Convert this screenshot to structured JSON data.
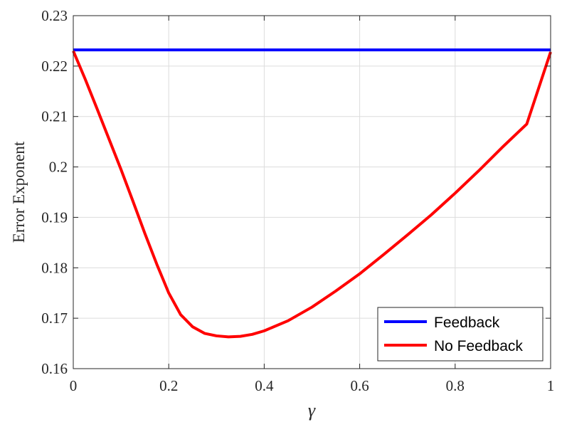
{
  "chart_data": {
    "type": "line",
    "title": "",
    "xlabel": "γ",
    "ylabel": "Error Exponent",
    "xlim": [
      0,
      1
    ],
    "ylim": [
      0.16,
      0.23
    ],
    "xticks": [
      0,
      0.2,
      0.4,
      0.6,
      0.8,
      1
    ],
    "xtick_labels": [
      "0",
      "0.2",
      "0.4",
      "0.6",
      "0.8",
      "1"
    ],
    "yticks": [
      0.16,
      0.17,
      0.18,
      0.19,
      0.2,
      0.21,
      0.22,
      0.23
    ],
    "ytick_labels": [
      "0.16",
      "0.17",
      "0.18",
      "0.19",
      "0.2",
      "0.21",
      "0.22",
      "0.23"
    ],
    "grid": true,
    "legend_position": "bottom-right",
    "series": [
      {
        "name": "Feedback",
        "color": "#0000ff",
        "x": [
          0,
          1
        ],
        "y": [
          0.2232,
          0.2232
        ]
      },
      {
        "name": "No Feedback",
        "color": "#ff0000",
        "x": [
          0,
          0.025,
          0.05,
          0.075,
          0.1,
          0.125,
          0.15,
          0.175,
          0.2,
          0.225,
          0.25,
          0.275,
          0.3,
          0.325,
          0.35,
          0.375,
          0.4,
          0.45,
          0.5,
          0.55,
          0.6,
          0.65,
          0.7,
          0.75,
          0.8,
          0.85,
          0.9,
          0.95,
          1
        ],
        "y": [
          0.223,
          0.2174,
          0.2115,
          0.2055,
          0.1995,
          0.1932,
          0.1868,
          0.1807,
          0.175,
          0.1707,
          0.1683,
          0.167,
          0.1665,
          0.1663,
          0.1664,
          0.1668,
          0.1675,
          0.1695,
          0.1722,
          0.1754,
          0.1788,
          0.1826,
          0.1865,
          0.1905,
          0.1948,
          0.1993,
          0.204,
          0.2085,
          0.2228
        ]
      }
    ]
  }
}
